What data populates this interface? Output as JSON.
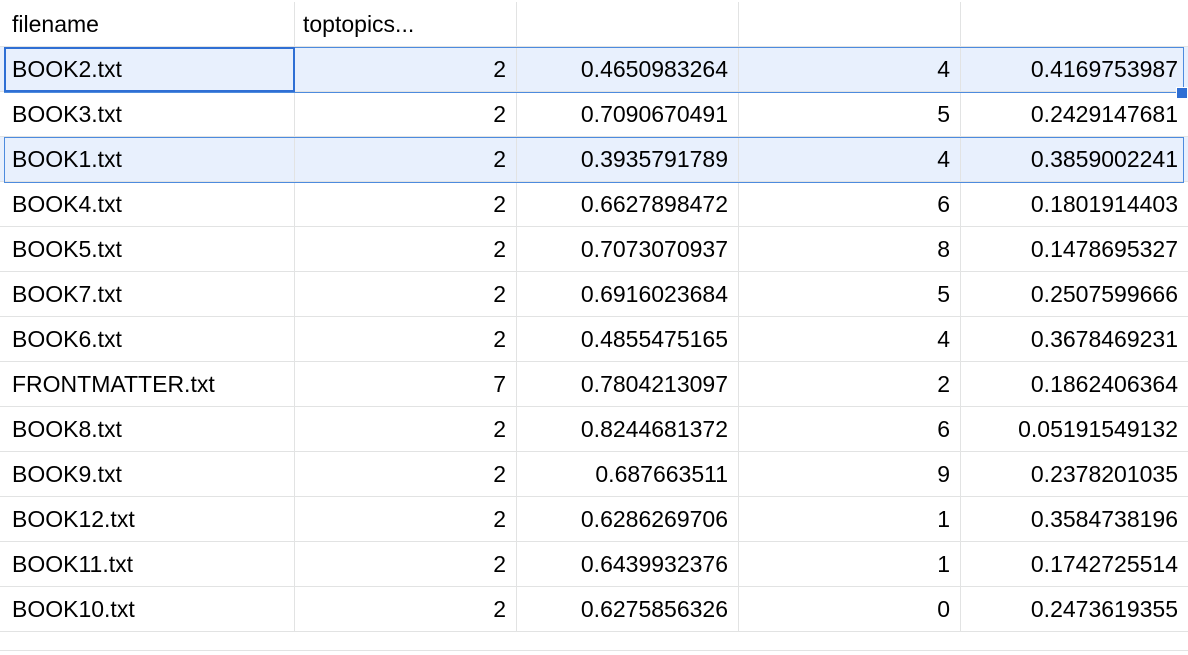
{
  "header": {
    "col0": "filename",
    "col1": "toptopics...",
    "col2": "",
    "col3": "",
    "col4": ""
  },
  "rows": [
    {
      "filename": "BOOK2.txt",
      "t1": "2",
      "w1": "0.4650983264",
      "t2": "4",
      "w2": "0.4169753987"
    },
    {
      "filename": "BOOK3.txt",
      "t1": "2",
      "w1": "0.7090670491",
      "t2": "5",
      "w2": "0.2429147681"
    },
    {
      "filename": "BOOK1.txt",
      "t1": "2",
      "w1": "0.3935791789",
      "t2": "4",
      "w2": "0.3859002241"
    },
    {
      "filename": "BOOK4.txt",
      "t1": "2",
      "w1": "0.6627898472",
      "t2": "6",
      "w2": "0.1801914403"
    },
    {
      "filename": "BOOK5.txt",
      "t1": "2",
      "w1": "0.7073070937",
      "t2": "8",
      "w2": "0.1478695327"
    },
    {
      "filename": "BOOK7.txt",
      "t1": "2",
      "w1": "0.6916023684",
      "t2": "5",
      "w2": "0.2507599666"
    },
    {
      "filename": "BOOK6.txt",
      "t1": "2",
      "w1": "0.4855475165",
      "t2": "4",
      "w2": "0.3678469231"
    },
    {
      "filename": "FRONTMATTER.txt",
      "t1": "7",
      "w1": "0.7804213097",
      "t2": "2",
      "w2": "0.1862406364"
    },
    {
      "filename": "BOOK8.txt",
      "t1": "2",
      "w1": "0.8244681372",
      "t2": "6",
      "w2": "0.05191549132"
    },
    {
      "filename": "BOOK9.txt",
      "t1": "2",
      "w1": "0.687663511",
      "t2": "9",
      "w2": "0.2378201035"
    },
    {
      "filename": "BOOK12.txt",
      "t1": "2",
      "w1": "0.6286269706",
      "t2": "1",
      "w2": "0.3584738196"
    },
    {
      "filename": "BOOK11.txt",
      "t1": "2",
      "w1": "0.6439932376",
      "t2": "1",
      "w2": "0.1742725514"
    },
    {
      "filename": "BOOK10.txt",
      "t1": "2",
      "w1": "0.6275856326",
      "t2": "0",
      "w2": "0.2473619355"
    }
  ],
  "colors": {
    "selection_fill": "#e8f0fd",
    "selection_border": "#4d8bde",
    "active_border": "#2f6fd4",
    "grid": "#e2e3e3"
  }
}
